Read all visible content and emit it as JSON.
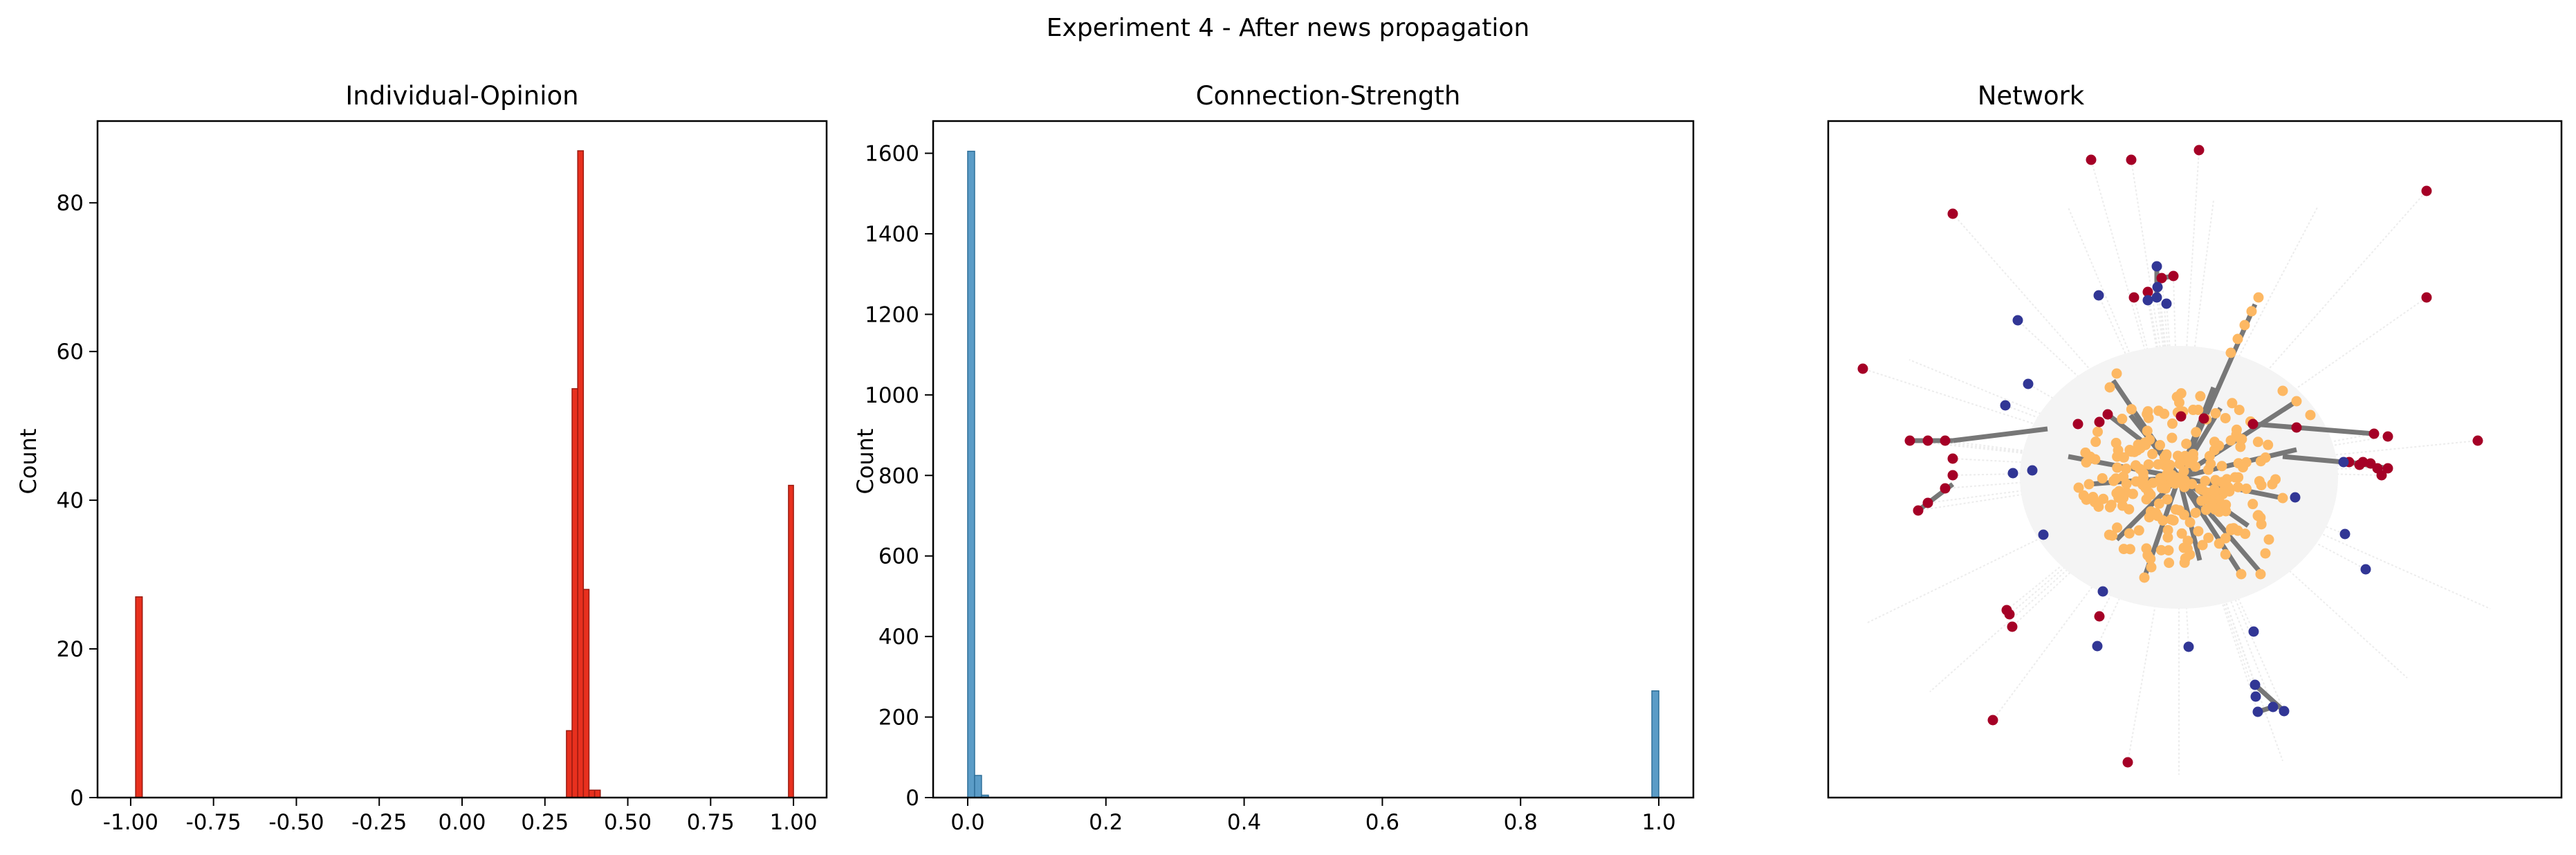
{
  "figure": {
    "suptitle": "Experiment 4 - After news propagation"
  },
  "chart_data": [
    {
      "type": "histogram",
      "title": "Individual-Opinion",
      "xlabel": "",
      "ylabel": "Count",
      "xlim": [
        -1.1,
        1.1
      ],
      "ylim": [
        0,
        91
      ],
      "xticks": [
        "-1.00",
        "-0.75",
        "-0.50",
        "-0.25",
        "0.00",
        "0.25",
        "0.50",
        "0.75",
        "1.00"
      ],
      "xtick_values": [
        -1.0,
        -0.75,
        -0.5,
        -0.25,
        0.0,
        0.25,
        0.5,
        0.75,
        1.0
      ],
      "yticks": [
        "0",
        "20",
        "40",
        "60",
        "80"
      ],
      "ytick_values": [
        0,
        20,
        40,
        60,
        80
      ],
      "bar_color": "#e8301e",
      "bar_edge": "#9a1a10",
      "bins": [
        {
          "x0": -0.985,
          "x1": -0.965,
          "count": 27
        },
        {
          "x0": 0.315,
          "x1": 0.332,
          "count": 9
        },
        {
          "x0": 0.332,
          "x1": 0.349,
          "count": 55
        },
        {
          "x0": 0.349,
          "x1": 0.366,
          "count": 87
        },
        {
          "x0": 0.366,
          "x1": 0.383,
          "count": 28
        },
        {
          "x0": 0.383,
          "x1": 0.4,
          "count": 1
        },
        {
          "x0": 0.4,
          "x1": 0.417,
          "count": 1
        },
        {
          "x0": 0.985,
          "x1": 1.0,
          "count": 42
        }
      ]
    },
    {
      "type": "histogram",
      "title": "Connection-Strength",
      "xlabel": "",
      "ylabel": "Count",
      "xlim": [
        -0.05,
        1.05
      ],
      "ylim": [
        0,
        1680
      ],
      "xticks": [
        "0.0",
        "0.2",
        "0.4",
        "0.6",
        "0.8",
        "1.0"
      ],
      "xtick_values": [
        0.0,
        0.2,
        0.4,
        0.6,
        0.8,
        1.0
      ],
      "yticks": [
        "0",
        "200",
        "400",
        "600",
        "800",
        "1000",
        "1200",
        "1400",
        "1600"
      ],
      "ytick_values": [
        0,
        200,
        400,
        600,
        800,
        1000,
        1200,
        1400,
        1600
      ],
      "bar_color": "#5b9cc7",
      "bar_edge": "#2e6f99",
      "bins": [
        {
          "x0": 0.0,
          "x1": 0.01,
          "count": 1605
        },
        {
          "x0": 0.01,
          "x1": 0.02,
          "count": 55
        },
        {
          "x0": 0.02,
          "x1": 0.03,
          "count": 6
        },
        {
          "x0": 0.99,
          "x1": 1.0,
          "count": 265
        }
      ]
    },
    {
      "type": "network",
      "title": "Network",
      "node_colors": {
        "positive": "#a50026",
        "negative": "#313695",
        "neutral": "#fdb863"
      },
      "strong_edge_color": "#777777",
      "weak_edge_color": "#ececec"
    }
  ]
}
